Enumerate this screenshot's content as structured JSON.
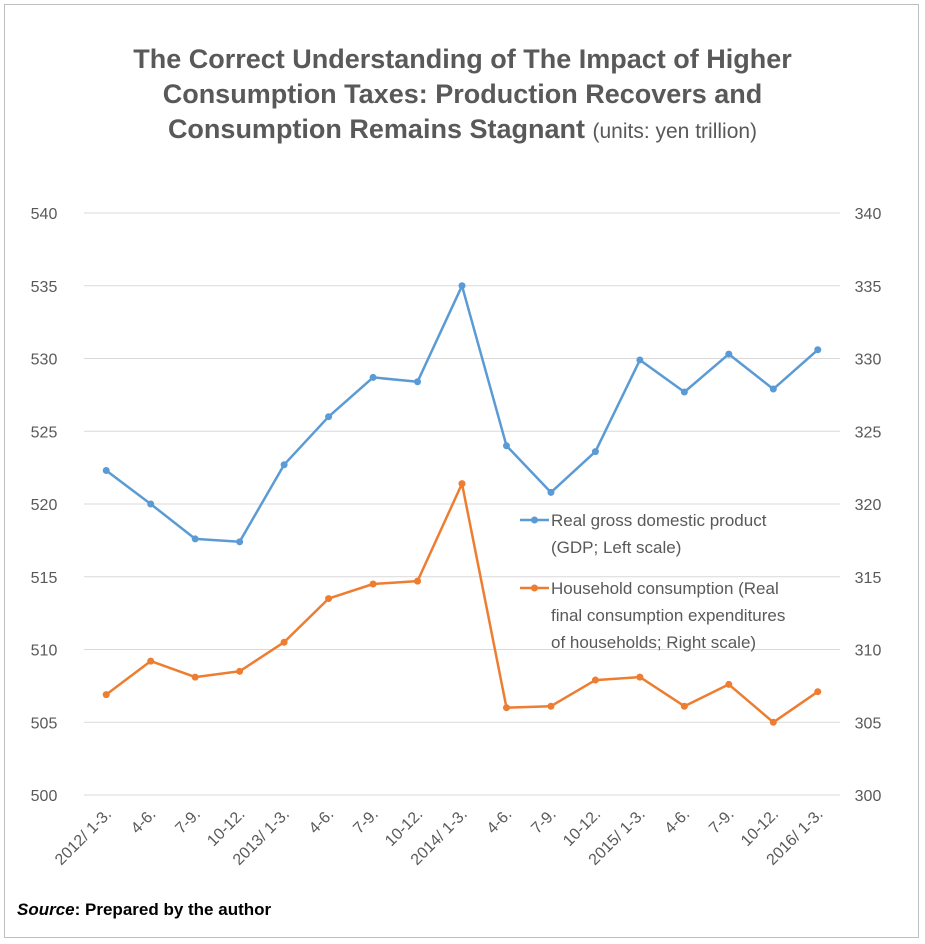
{
  "title": {
    "main_line1": "The Correct Understanding of The Impact of Higher",
    "main_line2": "Consumption Taxes: Production Recovers and",
    "main_line3": "Consumption Remains Stagnant",
    "units": "(units: yen trillion)"
  },
  "source": {
    "label": "Source",
    "text": ": Prepared by the author"
  },
  "chart_data": {
    "type": "line",
    "categories": [
      "2012/ 1-3.",
      "4-6.",
      "7-9.",
      "10-12.",
      "2013/ 1-3.",
      "4-6.",
      "7-9.",
      "10-12.",
      "2014/ 1-3.",
      "4-6.",
      "7-9.",
      "10-12.",
      "2015/ 1-3.",
      "4-6.",
      "7-9.",
      "10-12.",
      "2016/ 1-3."
    ],
    "left_axis": {
      "min": 500,
      "max": 540,
      "step": 5,
      "ticks": [
        "500",
        "505",
        "510",
        "515",
        "520",
        "525",
        "530",
        "535",
        "540"
      ]
    },
    "right_axis": {
      "min": 300,
      "max": 340,
      "step": 5,
      "ticks": [
        "300",
        "305",
        "310",
        "315",
        "320",
        "325",
        "330",
        "335",
        "340"
      ]
    },
    "grid": true,
    "legend_position": "right-middle",
    "series": [
      {
        "name": "Real gross domestic product (GDP; Left scale)",
        "legend_lines": [
          "Real gross domestic product",
          "(GDP; Left scale)"
        ],
        "axis": "left",
        "color": "#5b9bd5",
        "values": [
          522.3,
          520.0,
          517.6,
          517.4,
          522.7,
          526.0,
          528.7,
          528.4,
          535.0,
          524.0,
          520.8,
          523.6,
          529.9,
          527.7,
          530.3,
          527.9,
          530.6
        ]
      },
      {
        "name": "Household consumption (Real final consumption expenditures of households; Right scale)",
        "legend_lines": [
          "Household consumption (Real",
          "final consumption expenditures",
          "of households; Right scale)"
        ],
        "axis": "right",
        "color": "#ed7d31",
        "values": [
          306.9,
          309.2,
          308.1,
          308.5,
          310.5,
          313.5,
          314.5,
          314.7,
          321.4,
          306.0,
          306.1,
          307.9,
          308.1,
          306.1,
          307.6,
          305.0,
          307.1
        ]
      }
    ]
  }
}
